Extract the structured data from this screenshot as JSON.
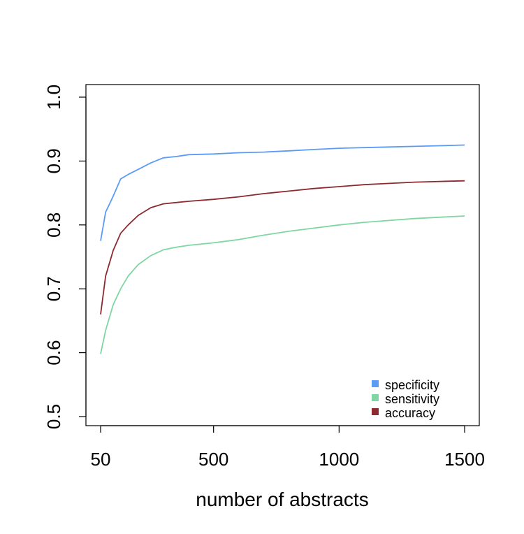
{
  "chart_data": {
    "type": "line",
    "title": "",
    "xlabel": "number of abstracts",
    "ylabel": "",
    "xlim": [
      50,
      1500
    ],
    "ylim": [
      0.5,
      1.0
    ],
    "x_ticks": [
      50,
      500,
      1000,
      1500
    ],
    "x_tick_labels": [
      "50",
      "500",
      "1000",
      "1500"
    ],
    "y_ticks": [
      0.5,
      0.6,
      0.7,
      0.8,
      0.9,
      1.0
    ],
    "y_tick_labels": [
      "0.5",
      "0.6",
      "0.7",
      "0.8",
      "0.9",
      "1.0"
    ],
    "grid": false,
    "legend_position": "bottom-right",
    "x": [
      50,
      70,
      100,
      130,
      160,
      200,
      250,
      300,
      350,
      400,
      500,
      600,
      700,
      800,
      900,
      1000,
      1100,
      1200,
      1300,
      1400,
      1500
    ],
    "series": [
      {
        "name": "specificity",
        "color": "#5b9bf5",
        "values": [
          0.775,
          0.82,
          0.845,
          0.872,
          0.879,
          0.887,
          0.897,
          0.905,
          0.907,
          0.91,
          0.911,
          0.913,
          0.914,
          0.916,
          0.918,
          0.92,
          0.921,
          0.922,
          0.923,
          0.924,
          0.925
        ]
      },
      {
        "name": "sensitivity",
        "color": "#7fd6a3",
        "values": [
          0.598,
          0.635,
          0.675,
          0.7,
          0.72,
          0.738,
          0.752,
          0.761,
          0.765,
          0.768,
          0.772,
          0.777,
          0.784,
          0.79,
          0.795,
          0.8,
          0.804,
          0.807,
          0.81,
          0.812,
          0.814
        ]
      },
      {
        "name": "accuracy",
        "color": "#8c2a2f",
        "values": [
          0.66,
          0.72,
          0.76,
          0.787,
          0.8,
          0.815,
          0.827,
          0.833,
          0.835,
          0.837,
          0.84,
          0.844,
          0.849,
          0.853,
          0.857,
          0.86,
          0.863,
          0.865,
          0.867,
          0.868,
          0.869
        ]
      }
    ]
  }
}
